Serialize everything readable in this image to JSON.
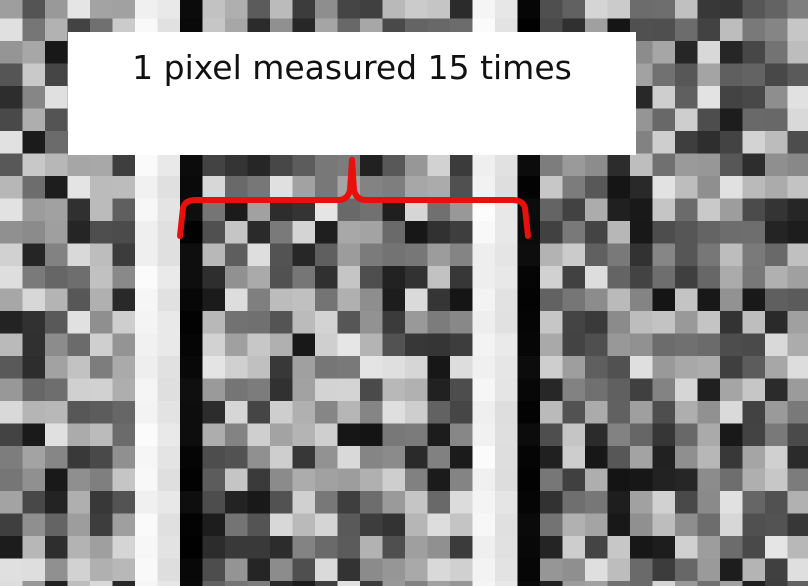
{
  "annotation": {
    "text": "1 pixel measured 15 times"
  }
}
